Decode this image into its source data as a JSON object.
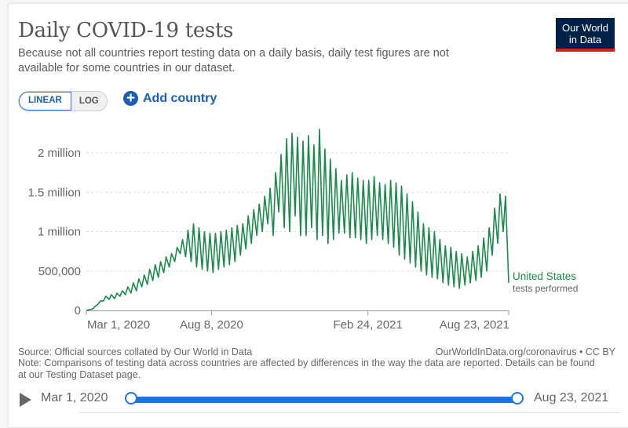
{
  "header": {
    "title": "Daily COVID-19 tests",
    "subtitle": "Because not all countries report testing data on a daily basis, daily test figures are not available for some countries in our dataset.",
    "logo_line1": "Our World",
    "logo_line2": "in Data"
  },
  "controls": {
    "linear_label": "LINEAR",
    "log_label": "LOG",
    "active_scale": "linear",
    "add_country_label": "Add country",
    "add_icon": "plus-circle-icon"
  },
  "footer": {
    "source": "Source: Official sources collated by Our World in Data",
    "url": "OurWorldInData.org/coronavirus • CC BY",
    "note": "Note: Comparisons of testing data across countries are affected by differences in the way the data are reported. Details can be found at our Testing Dataset page."
  },
  "timeline": {
    "start_label": "Mar 1, 2020",
    "end_label": "Aug 23, 2021",
    "play_icon": "play-icon",
    "range_start_fraction": 0,
    "range_end_fraction": 1
  },
  "colors": {
    "series": "#1a8a4a",
    "accent": "#1a73e8",
    "logo_bg": "#002147",
    "logo_bar": "#ce261e"
  },
  "chart_data": {
    "type": "line",
    "title": "Daily COVID-19 tests",
    "xlabel": "",
    "ylabel": "",
    "y_ticks": [
      {
        "value": 0,
        "label": "0"
      },
      {
        "value": 500000,
        "label": "500,000"
      },
      {
        "value": 1000000,
        "label": "1 million"
      },
      {
        "value": 1500000,
        "label": "1.5 million"
      },
      {
        "value": 2000000,
        "label": "2 million"
      }
    ],
    "x_ticks": [
      {
        "day": 0,
        "label": "Mar 1, 2020"
      },
      {
        "day": 160,
        "label": "Aug 8, 2020"
      },
      {
        "day": 360,
        "label": "Feb 24, 2021"
      },
      {
        "day": 540,
        "label": "Aug 23, 2021"
      }
    ],
    "x_range_days": [
      0,
      540
    ],
    "ylim": [
      0,
      2300000
    ],
    "grid": true,
    "legend": "end-label",
    "series": [
      {
        "name": "United States",
        "sublabel": "tests performed",
        "note": "weekly high/low of daily tests (millions), week index from Mar 1, 2020",
        "weekly_high": [
          0.01,
          0.05,
          0.12,
          0.18,
          0.2,
          0.22,
          0.25,
          0.3,
          0.35,
          0.4,
          0.45,
          0.52,
          0.58,
          0.62,
          0.68,
          0.72,
          0.8,
          0.9,
          1.02,
          1.1,
          1.05,
          1.0,
          0.98,
          0.98,
          1.0,
          1.02,
          1.05,
          1.08,
          1.1,
          1.2,
          1.28,
          1.35,
          1.45,
          1.55,
          1.75,
          1.98,
          2.18,
          2.25,
          2.2,
          2.15,
          2.22,
          2.1,
          2.3,
          2.05,
          1.92,
          1.8,
          1.65,
          1.72,
          1.75,
          1.68,
          1.65,
          1.65,
          1.7,
          1.62,
          1.6,
          1.65,
          1.62,
          1.58,
          1.48,
          1.38,
          1.25,
          1.1,
          1.05,
          1.0,
          0.9,
          0.82,
          0.8,
          0.75,
          0.72,
          0.68,
          0.75,
          0.82,
          0.92,
          1.05,
          1.3,
          1.48,
          1.45,
          1.6
        ],
        "weekly_low": [
          0.0,
          0.02,
          0.08,
          0.12,
          0.14,
          0.15,
          0.18,
          0.2,
          0.22,
          0.25,
          0.3,
          0.33,
          0.38,
          0.42,
          0.48,
          0.55,
          0.62,
          0.72,
          0.68,
          0.62,
          0.55,
          0.52,
          0.5,
          0.48,
          0.52,
          0.55,
          0.58,
          0.62,
          0.7,
          0.78,
          0.85,
          0.95,
          1.0,
          1.1,
          0.95,
          1.25,
          1.05,
          1.0,
          1.2,
          0.95,
          0.95,
          1.05,
          0.9,
          0.95,
          0.85,
          0.9,
          0.98,
          0.98,
          0.92,
          0.92,
          0.9,
          0.85,
          0.9,
          0.95,
          0.9,
          0.85,
          0.8,
          0.7,
          0.65,
          0.6,
          0.55,
          0.5,
          0.45,
          0.42,
          0.4,
          0.35,
          0.32,
          0.3,
          0.28,
          0.32,
          0.35,
          0.38,
          0.42,
          0.5,
          0.7,
          0.85,
          1.0,
          0.35
        ]
      }
    ]
  }
}
